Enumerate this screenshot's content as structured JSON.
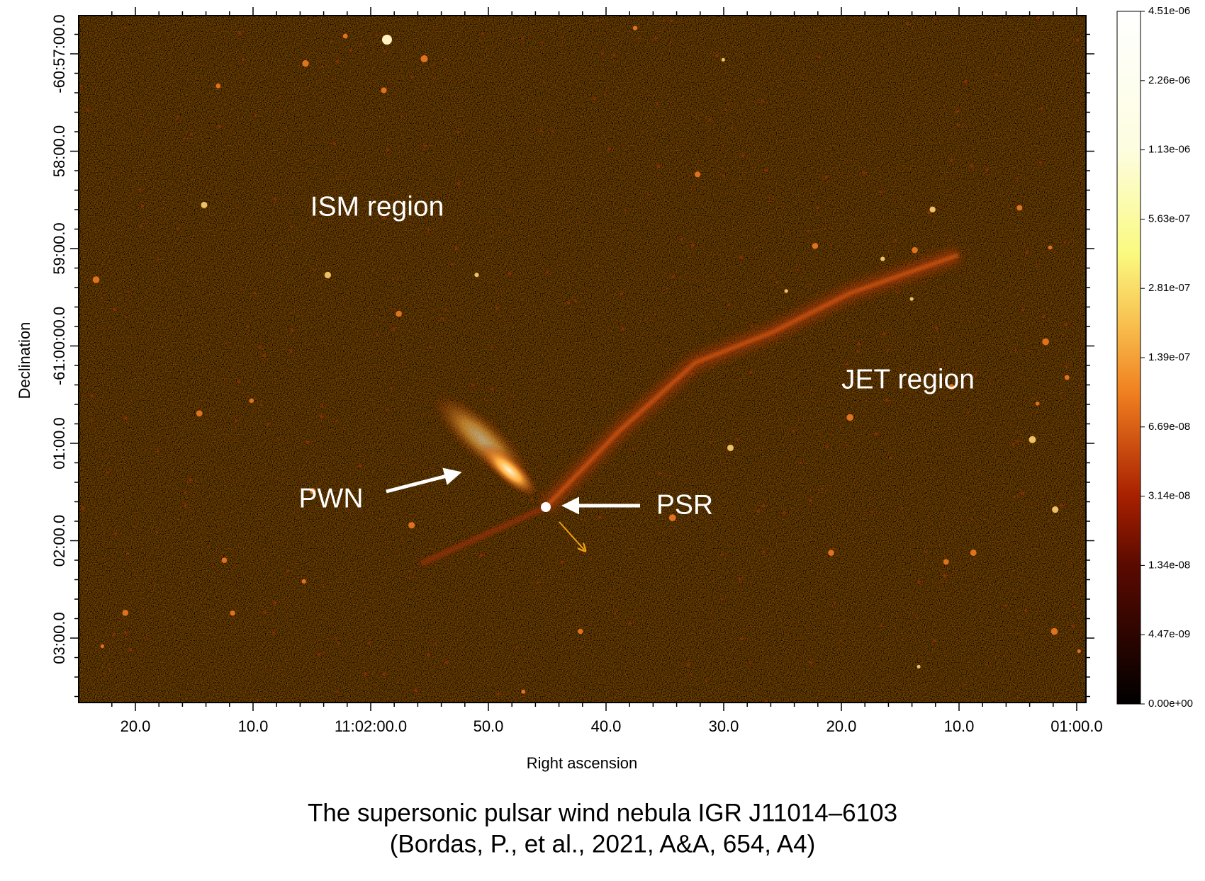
{
  "figure": {
    "annotations": {
      "ism": "ISM region",
      "jet": "JET region",
      "pwn": "PWN",
      "psr": "PSR"
    },
    "x_axis": {
      "label": "Right ascension",
      "ticks": [
        "20.0",
        "10.0",
        "11:02:00.0",
        "50.0",
        "40.0",
        "30.0",
        "20.0",
        "10.0",
        "01:00.0"
      ]
    },
    "y_axis": {
      "label": "Declination",
      "ticks": [
        "-60:57:00.0",
        "58:00.0",
        "59:00.0",
        "-61:00:00.0",
        "01:00.0",
        "02:00.0",
        "03:00.0"
      ]
    },
    "colorbar": {
      "ticks": [
        {
          "value": 0,
          "label": "0.00e+00"
        },
        {
          "value": 4.47e-09,
          "label": "4.47e-09"
        },
        {
          "value": 1.34e-08,
          "label": "1.34e-08"
        },
        {
          "value": 3.14e-08,
          "label": "3.14e-08"
        },
        {
          "value": 6.69e-08,
          "label": "6.69e-08"
        },
        {
          "value": 1.39e-07,
          "label": "1.39e-07"
        },
        {
          "value": 2.81e-07,
          "label": "2.81e-07"
        },
        {
          "value": 5.63e-07,
          "label": "5.63e-07"
        },
        {
          "value": 1.13e-06,
          "label": "1.13e-06"
        },
        {
          "value": 2.26e-06,
          "label": "2.26e-06"
        },
        {
          "value": 4.51e-06,
          "label": "4.51e-06"
        }
      ]
    },
    "caption": [
      "The supersonic pulsar wind nebula IGR J11014–6103",
      "(Bordas, P., et al., 2021, A&A, 654, A4)"
    ]
  }
}
